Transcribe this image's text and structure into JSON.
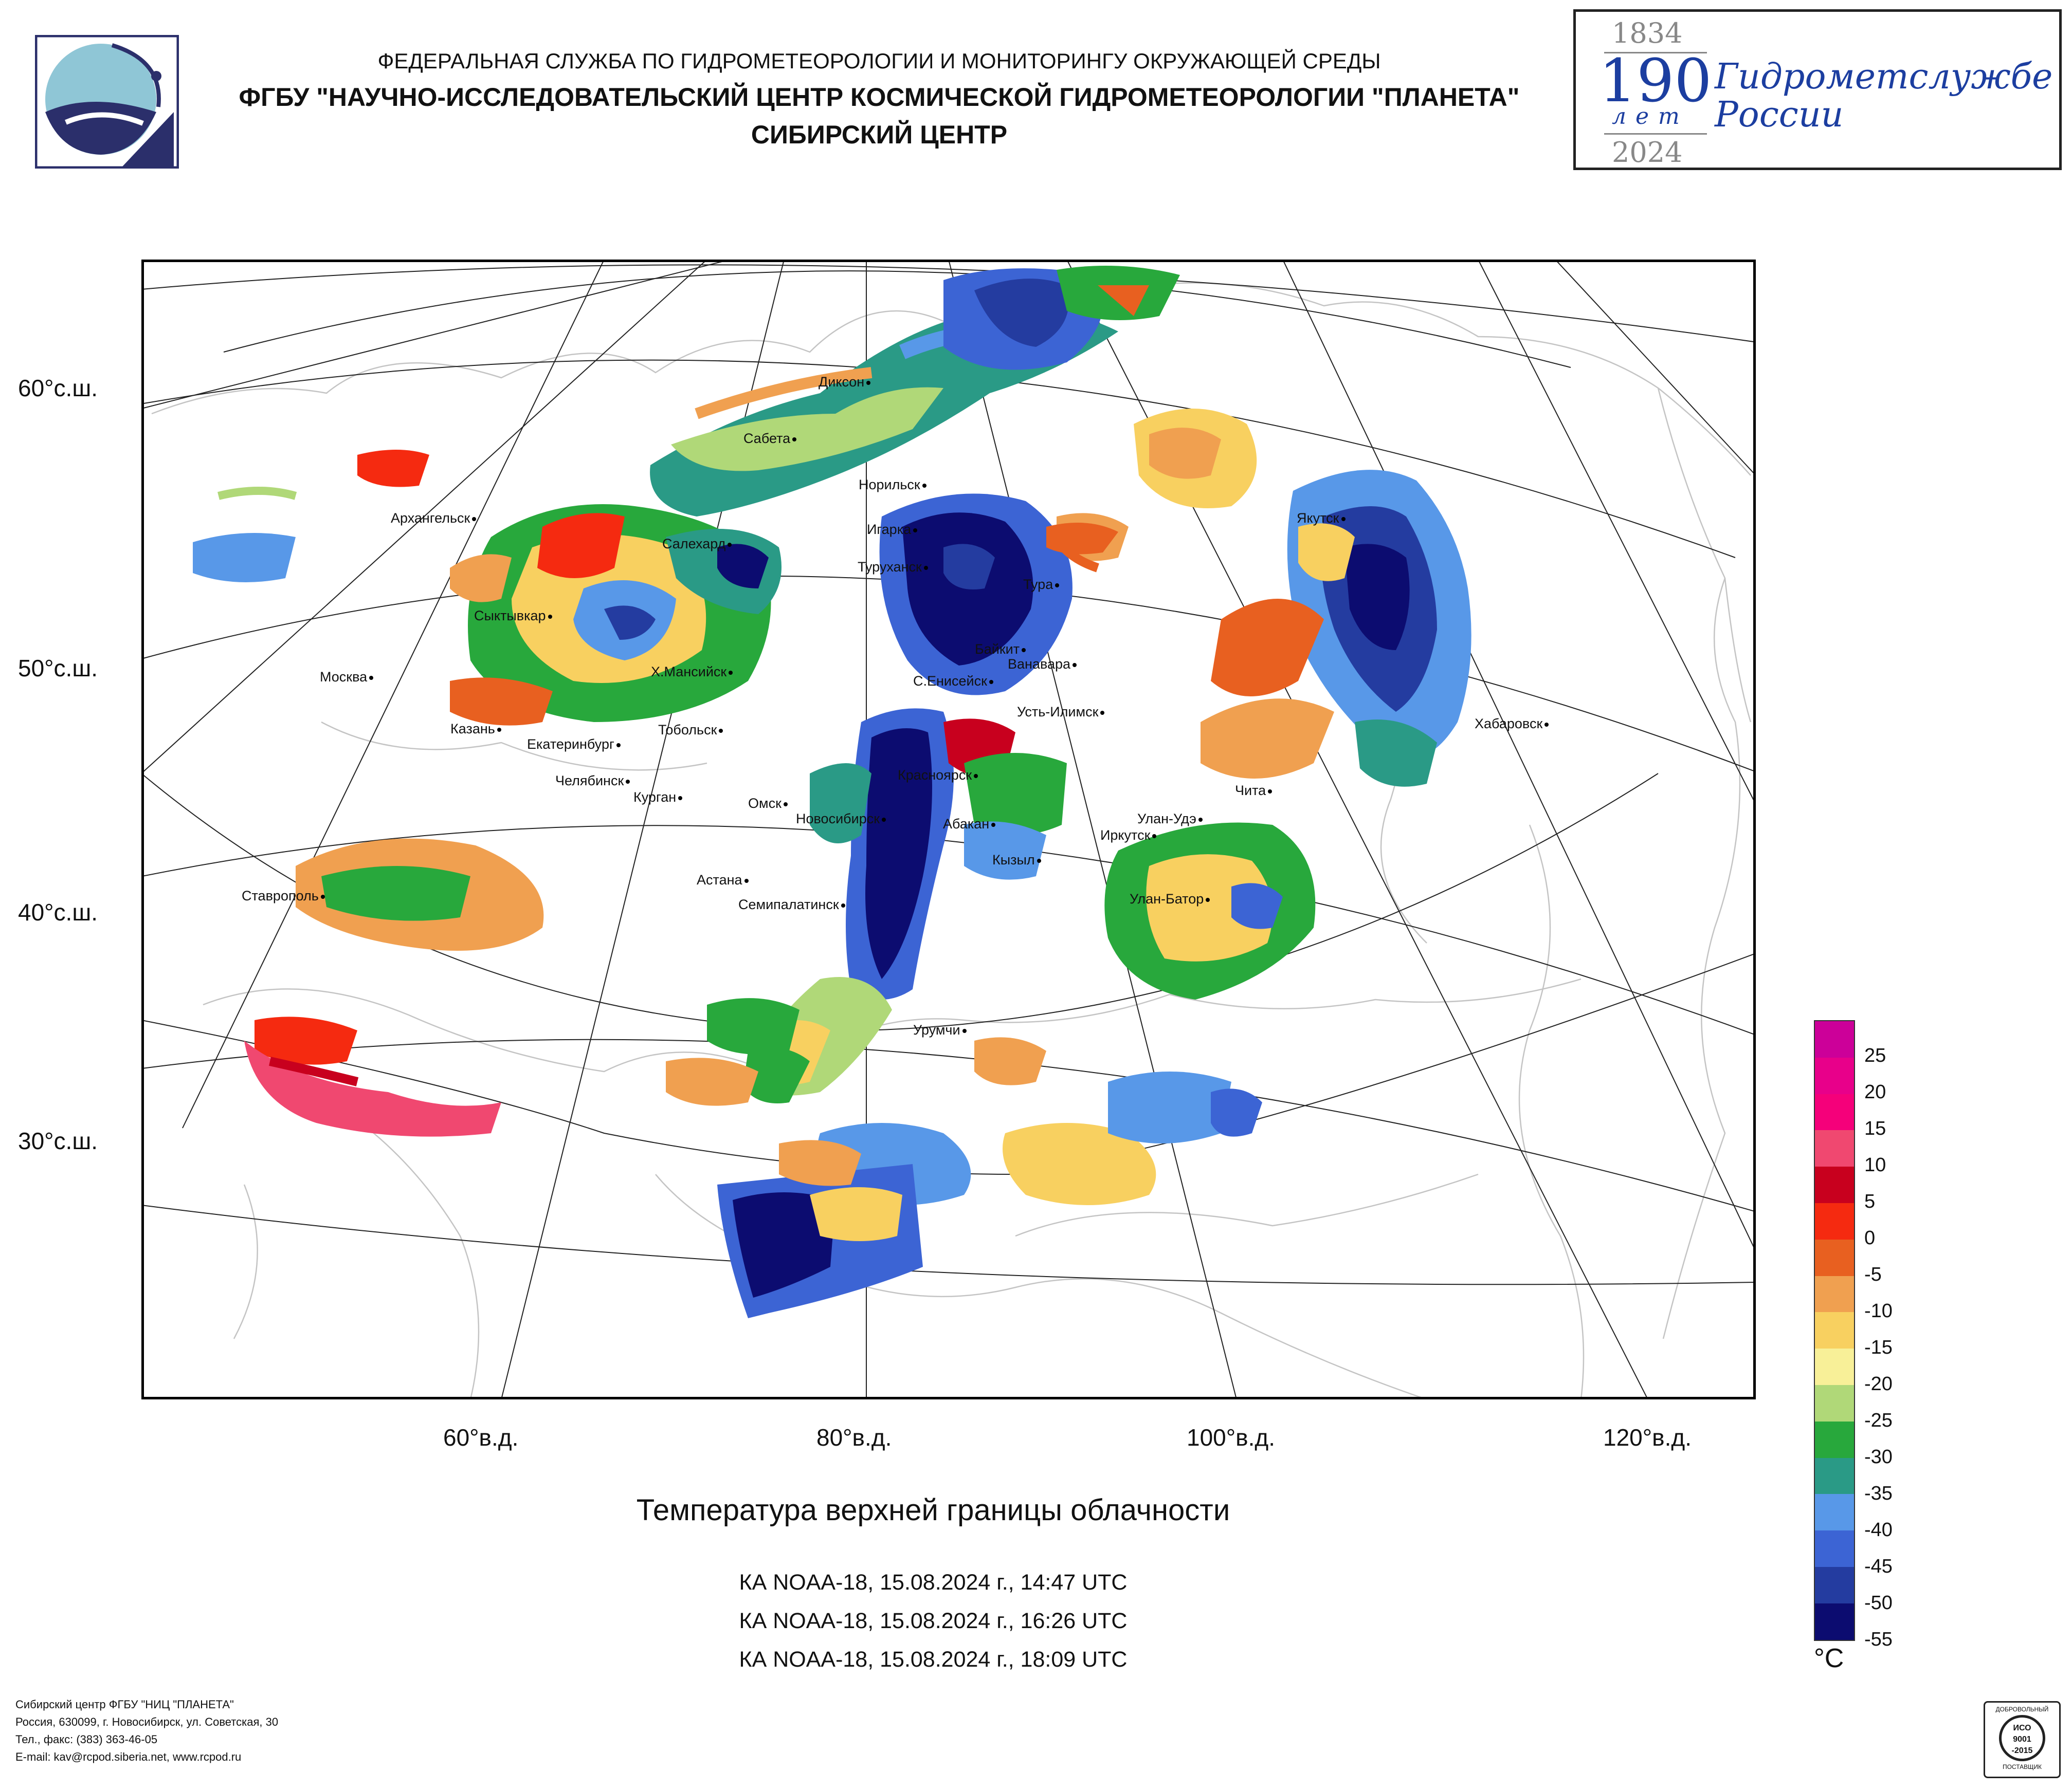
{
  "header": {
    "line1": "ФЕДЕРАЛЬНАЯ СЛУЖБА ПО ГИДРОМЕТЕОРОЛОГИИ И МОНИТОРИНГУ ОКРУЖАЮЩЕЙ СРЕДЫ",
    "line2": "ФГБУ \"НАУЧНО-ИССЛЕДОВАТЕЛЬСКИЙ ЦЕНТР КОСМИЧЕСКОЙ ГИДРОМЕТЕОРОЛОГИИ \"ПЛАНЕТА\"",
    "line3": "СИБИРСКИЙ ЦЕНТР"
  },
  "anniversary": {
    "year_start": "1834",
    "number": "190",
    "years_word": "лет",
    "year_end": "2024",
    "text_line1": "Гидрометслужбе",
    "text_line2": "России"
  },
  "map": {
    "lat_labels": [
      "60°с.ш.",
      "50°с.ш.",
      "40°с.ш.",
      "30°с.ш."
    ],
    "lon_labels": [
      "60°в.д.",
      "80°в.д.",
      "100°в.д.",
      "120°в.д."
    ],
    "cities": [
      "Диксон",
      "Сабета",
      "Норильск",
      "Игарка",
      "Салехард",
      "Туруханск",
      "Тура",
      "Архангельск",
      "Сыктывкар",
      "Байкит",
      "Ванавара",
      "Москва",
      "Х.Мансийск",
      "С.Енисейск",
      "Усть-Илимск",
      "Якутск",
      "Казань",
      "Екатеринбург",
      "Тобольск",
      "Хабаровск",
      "Челябинск",
      "Курган",
      "Красноярск",
      "Омск",
      "Новосибирск",
      "Чита",
      "Улан-Удэ",
      "Абакан",
      "Иркутск",
      "Кызыл",
      "Астана",
      "Ставрополь",
      "Улан-Батор",
      "Семипалатинск",
      "Урумчи"
    ]
  },
  "legend": {
    "unit": "°C",
    "labels": [
      "25",
      "20",
      "15",
      "10",
      "5",
      "0",
      "-5",
      "-10",
      "-15",
      "-20",
      "-25",
      "-30",
      "-35",
      "-40",
      "-45",
      "-50",
      "-55"
    ],
    "colors": [
      "#cc0099",
      "#e8008a",
      "#f5007a",
      "#f04870",
      "#c8001e",
      "#f52a10",
      "#e86020",
      "#f0a050",
      "#f8d060",
      "#f8f098",
      "#b0d878",
      "#28a83c",
      "#2a9a86",
      "#5898e8",
      "#3c64d4",
      "#243ca0",
      "#0c0c70"
    ]
  },
  "title": "Температура верхней границы облачности",
  "passes": [
    "КА NOAA-18, 15.08.2024 г., 14:47 UTC",
    "КА NOAA-18, 15.08.2024 г., 16:26 UTC",
    "КА NOAA-18, 15.08.2024 г., 18:09 UTC"
  ],
  "footer": {
    "line1": "Сибирский центр ФГБУ \"НИЦ \"ПЛАНЕТА\"",
    "line2": "Россия, 630099, г. Новосибирск, ул. Советская, 30",
    "line3": "Тел., факс: (383) 363-46-05",
    "line4": "E-mail: kav@rcpod.siberia.net, www.rcpod.ru"
  },
  "iso_badge": {
    "top": "ДОБРОВОЛЬНЫЙ",
    "line1": "ИСО",
    "line2": "9001",
    "line3": "-2015",
    "bottom": "ПОСТАВЩИК"
  }
}
